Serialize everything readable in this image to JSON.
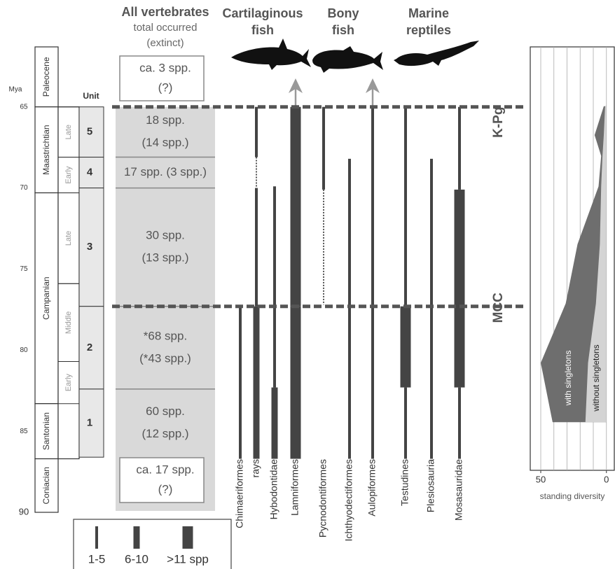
{
  "time_axis": {
    "label": "Mya",
    "lim": [
      61.3,
      90
    ],
    "ticks": [
      65,
      70,
      75,
      80,
      85,
      90
    ]
  },
  "stages": [
    {
      "name": "Paleocene",
      "from": 61.3,
      "to": 65
    },
    {
      "name": "Maastrichtian",
      "from": 65,
      "to": 70.3
    },
    {
      "name": "Campanian",
      "from": 70.3,
      "to": 83.3
    },
    {
      "name": "Santonian",
      "from": 83.3,
      "to": 86.7
    },
    {
      "name": "Coniacian",
      "from": 86.7,
      "to": 90
    }
  ],
  "substages": [
    {
      "name": "Late",
      "from": 65,
      "to": 68.1
    },
    {
      "name": "Early",
      "from": 68.1,
      "to": 70.3
    },
    {
      "name": "Late",
      "from": 70.3,
      "to": 75.9
    },
    {
      "name": "Middle",
      "from": 75.9,
      "to": 80.7
    },
    {
      "name": "Early",
      "from": 80.7,
      "to": 83.3
    }
  ],
  "units": {
    "header": "Unit",
    "items": [
      {
        "label": "5",
        "from": 65,
        "to": 68.1
      },
      {
        "label": "4",
        "from": 68.1,
        "to": 70
      },
      {
        "label": "3",
        "from": 70,
        "to": 77.3
      },
      {
        "label": "2",
        "from": 77.3,
        "to": 82.4
      },
      {
        "label": "1",
        "from": 82.4,
        "to": 86.6
      }
    ]
  },
  "vertebrates": {
    "header": [
      "All vertebrates",
      "total occurred",
      "(extinct)"
    ],
    "above": [
      "ca. 3 spp.",
      "(?)"
    ],
    "rows": [
      [
        "18 spp.",
        "(14 spp.)"
      ],
      [
        "17 spp. (3 spp.)"
      ],
      [
        "30 spp.",
        "(13 spp.)"
      ],
      [
        "*68 spp.",
        "(*43 spp.)"
      ],
      [
        "60 spp.",
        "(12 spp.)"
      ]
    ],
    "below": [
      "ca. 17 spp.",
      "(?)"
    ]
  },
  "groups": [
    [
      "Cartilaginous",
      "fish"
    ],
    [
      "Bony",
      "fish"
    ],
    [
      "Marine",
      "reptiles"
    ]
  ],
  "taxa": [
    {
      "name": "Chimaeriformes",
      "segments": [
        {
          "from": 77.3,
          "to": 86.7,
          "size": 1
        }
      ]
    },
    {
      "name": "rays",
      "segments": [
        {
          "from": 65,
          "to": 68.1,
          "size": 1
        },
        {
          "from": 68.1,
          "to": 70,
          "size": 1,
          "dotted": true
        },
        {
          "from": 70,
          "to": 77.3,
          "size": 1
        },
        {
          "from": 77.3,
          "to": 86.7,
          "size": 2
        }
      ]
    },
    {
      "name": "Hybodontidae",
      "segments": [
        {
          "from": 69.9,
          "to": 82.3,
          "size": 1
        },
        {
          "from": 82.3,
          "to": 86.7,
          "size": 2
        }
      ]
    },
    {
      "name": "Lamniformes",
      "arrow": true,
      "segments": [
        {
          "from": 65,
          "to": 77.3,
          "size": 3
        },
        {
          "from": 77.3,
          "to": 86.7,
          "size": 3
        }
      ]
    },
    {
      "name": "Pycnodontiformes",
      "segments": [
        {
          "from": 65,
          "to": 70.1,
          "size": 1
        },
        {
          "from": 70.1,
          "to": 77.2,
          "size": 1,
          "dotted": true
        }
      ]
    },
    {
      "name": "Ichthyodectiformes",
      "segments": [
        {
          "from": 68.2,
          "to": 86.7,
          "size": 1
        }
      ]
    },
    {
      "name": "Aulopiformes",
      "arrow": true,
      "segments": [
        {
          "from": 65,
          "to": 86.7,
          "size": 1
        }
      ]
    },
    {
      "name": "Testudines",
      "segments": [
        {
          "from": 65,
          "to": 77.3,
          "size": 1
        },
        {
          "from": 77.3,
          "to": 82.3,
          "size": 3
        },
        {
          "from": 82.3,
          "to": 86.7,
          "size": 1
        }
      ]
    },
    {
      "name": "Plesiosauria",
      "segments": [
        {
          "from": 68.2,
          "to": 86.7,
          "size": 1
        }
      ]
    },
    {
      "name": "Mosasauridae",
      "segments": [
        {
          "from": 65,
          "to": 70.1,
          "size": 1
        },
        {
          "from": 70.1,
          "to": 82.3,
          "size": 3
        },
        {
          "from": 82.3,
          "to": 86.7,
          "size": 1
        }
      ]
    }
  ],
  "events": [
    {
      "label": "K-Pg",
      "age": 65
    },
    {
      "label": "MCC",
      "age": 77.3
    }
  ],
  "legend": [
    {
      "label": "1-5",
      "size": 1
    },
    {
      "label": "6-10",
      "size": 2
    },
    {
      "label": ">11 spp",
      "size": 3
    }
  ],
  "chart_data": {
    "type": "area",
    "xlabel": "standing diversity",
    "xlim": [
      58,
      -6
    ],
    "xticks": [
      50,
      0
    ],
    "xgrid": [
      50,
      40,
      30,
      20,
      10,
      0
    ],
    "ylim": [
      61.3,
      87.7
    ],
    "y": [
      65,
      66.8,
      68.1,
      70,
      73.6,
      77.3,
      81,
      84.7
    ],
    "series": [
      {
        "name": "with singletons",
        "color": "#6e6e6e",
        "values": [
          2,
          9,
          4,
          6,
          22,
          31,
          50,
          41
        ]
      },
      {
        "name": "without singletons",
        "color": "#d4d4d4",
        "values": [
          1,
          2,
          3,
          4,
          5,
          8,
          14,
          16
        ]
      }
    ]
  }
}
